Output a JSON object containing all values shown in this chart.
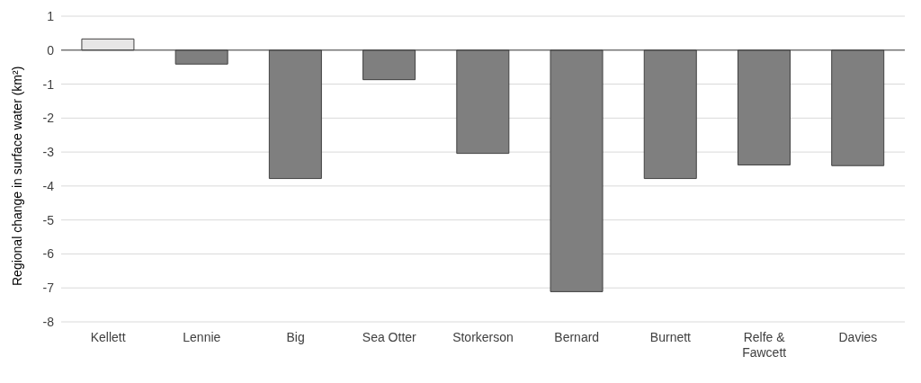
{
  "chart_data": {
    "type": "bar",
    "ylabel": "Regional change in surface water (km²)",
    "categories": [
      "Kellett",
      "Lennie",
      "Big",
      "Sea Otter",
      "Storkerson",
      "Bernard",
      "Burnett",
      "Relfe & Fawcett",
      "Davies"
    ],
    "values": [
      0.33,
      -0.41,
      -3.78,
      -0.87,
      -3.04,
      -7.11,
      -3.78,
      -3.38,
      -3.4
    ],
    "colors": [
      "#e7e6e6",
      "#7f7f7f",
      "#7f7f7f",
      "#7f7f7f",
      "#7f7f7f",
      "#7f7f7f",
      "#7f7f7f",
      "#7f7f7f",
      "#7f7f7f"
    ],
    "ylim": [
      -8,
      1
    ],
    "yticks": [
      -8,
      -7,
      -6,
      -5,
      -4,
      -3,
      -2,
      -1,
      0,
      1
    ],
    "grid": "y"
  }
}
